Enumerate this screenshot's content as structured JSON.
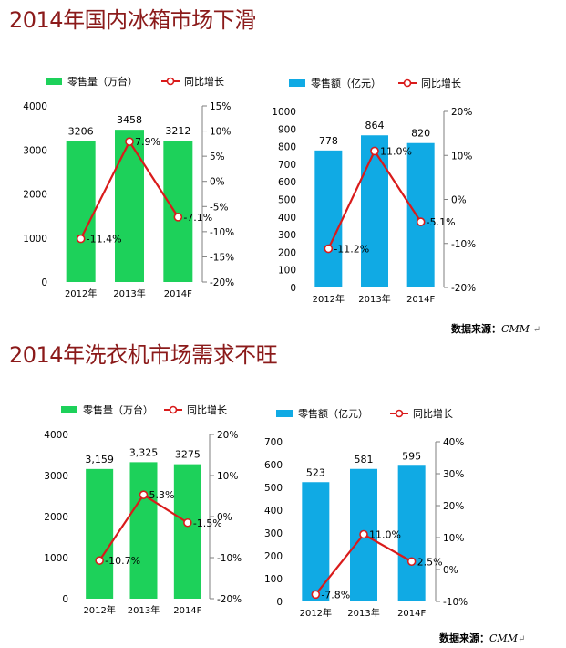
{
  "section1": {
    "title": "2014年国内冰箱市场下滑",
    "source_label": "数据来源：",
    "source_value": "CMM",
    "return_mark": "↵"
  },
  "section2": {
    "title": "2014年洗衣机市场需求不旺",
    "source_label": "数据来源：",
    "source_value": "CMM",
    "return_mark": "↵"
  },
  "colors": {
    "title": "#8b1a1a",
    "green_bar": "#1dd15a",
    "blue_bar": "#10aae4",
    "growth_line": "#d91b1b"
  },
  "chart_data": [
    {
      "id": "c1",
      "type": "bar",
      "categories": [
        "2012年",
        "2013年",
        "2014F"
      ],
      "series": [
        {
          "name": "零售量（万台）",
          "kind": "bar",
          "axis": "left",
          "values": [
            3206,
            3458,
            3212
          ],
          "labels": [
            "3206",
            "3458",
            "3212"
          ]
        },
        {
          "name": "同比增长",
          "kind": "line",
          "axis": "right",
          "values": [
            -11.4,
            7.9,
            -7.1
          ],
          "labels": [
            "-11.4%",
            "7.9%",
            "-7.1%"
          ]
        }
      ],
      "ylim": [
        0,
        4000
      ],
      "yticks": [
        0,
        1000,
        2000,
        3000,
        4000
      ],
      "ytick_labels": [
        "0",
        "1000",
        "2000",
        "3000",
        "4000"
      ],
      "y2lim": [
        -20,
        15
      ],
      "y2ticks": [
        -20,
        -15,
        -10,
        -5,
        0,
        5,
        10,
        15
      ],
      "y2tick_labels": [
        "-20%",
        "-15%",
        "-10%",
        "-5%",
        "0%",
        "5%",
        "10%",
        "15%"
      ],
      "legend": "top"
    },
    {
      "id": "c2",
      "type": "bar",
      "categories": [
        "2012年",
        "2013年",
        "2014F"
      ],
      "series": [
        {
          "name": "零售额（亿元）",
          "kind": "bar",
          "axis": "left",
          "values": [
            778,
            864,
            820
          ],
          "labels": [
            "778",
            "864",
            "820"
          ]
        },
        {
          "name": "同比增长",
          "kind": "line",
          "axis": "right",
          "values": [
            -11.2,
            11.0,
            -5.1
          ],
          "labels": [
            "-11.2%",
            "11.0%",
            "-5.1%"
          ]
        }
      ],
      "ylim": [
        0,
        1000
      ],
      "yticks": [
        0,
        100,
        200,
        300,
        400,
        500,
        600,
        700,
        800,
        900,
        1000
      ],
      "ytick_labels": [
        "0",
        "100",
        "200",
        "300",
        "400",
        "500",
        "600",
        "700",
        "800",
        "900",
        "1000"
      ],
      "y2lim": [
        -20,
        20
      ],
      "y2ticks": [
        -20,
        -10,
        0,
        10,
        20
      ],
      "y2tick_labels": [
        "-20%",
        "-10%",
        "0%",
        "10%",
        "20%"
      ],
      "legend": "top"
    },
    {
      "id": "c3",
      "type": "bar",
      "categories": [
        "2012年",
        "2013年",
        "2014F"
      ],
      "series": [
        {
          "name": "零售量（万台）",
          "kind": "bar",
          "axis": "left",
          "values": [
            3159,
            3325,
            3275
          ],
          "labels": [
            "3,159",
            "3,325",
            "3275"
          ]
        },
        {
          "name": "同比增长",
          "kind": "line",
          "axis": "right",
          "values": [
            -10.7,
            5.3,
            -1.5
          ],
          "labels": [
            "-10.7%",
            "5.3%",
            "-1.5%"
          ]
        }
      ],
      "ylim": [
        0,
        4000
      ],
      "yticks": [
        0,
        1000,
        2000,
        3000,
        4000
      ],
      "ytick_labels": [
        "0",
        "1000",
        "2000",
        "3000",
        "4000"
      ],
      "y2lim": [
        -20,
        20
      ],
      "y2ticks": [
        -20,
        -10,
        0,
        10,
        20
      ],
      "y2tick_labels": [
        "-20%",
        "-10%",
        "0%",
        "10%",
        "20%"
      ],
      "legend": "top"
    },
    {
      "id": "c4",
      "type": "bar",
      "categories": [
        "2012年",
        "2013年",
        "2014F"
      ],
      "series": [
        {
          "name": "零售额（亿元）",
          "kind": "bar",
          "axis": "left",
          "values": [
            523,
            581,
            595
          ],
          "labels": [
            "523",
            "581",
            "595"
          ]
        },
        {
          "name": "同比增长",
          "kind": "line",
          "axis": "right",
          "values": [
            -7.8,
            11.0,
            2.5
          ],
          "labels": [
            "-7.8%",
            "11.0%",
            "2.5%"
          ]
        }
      ],
      "ylim": [
        0,
        700
      ],
      "yticks": [
        0,
        100,
        200,
        300,
        400,
        500,
        600,
        700
      ],
      "ytick_labels": [
        "0",
        "100",
        "200",
        "300",
        "400",
        "500",
        "600",
        "700"
      ],
      "y2lim": [
        -10,
        40
      ],
      "y2ticks": [
        -10,
        0,
        10,
        20,
        30,
        40
      ],
      "y2tick_labels": [
        "-10%",
        "0%",
        "10%",
        "20%",
        "30%",
        "40%"
      ],
      "legend": "top"
    }
  ]
}
